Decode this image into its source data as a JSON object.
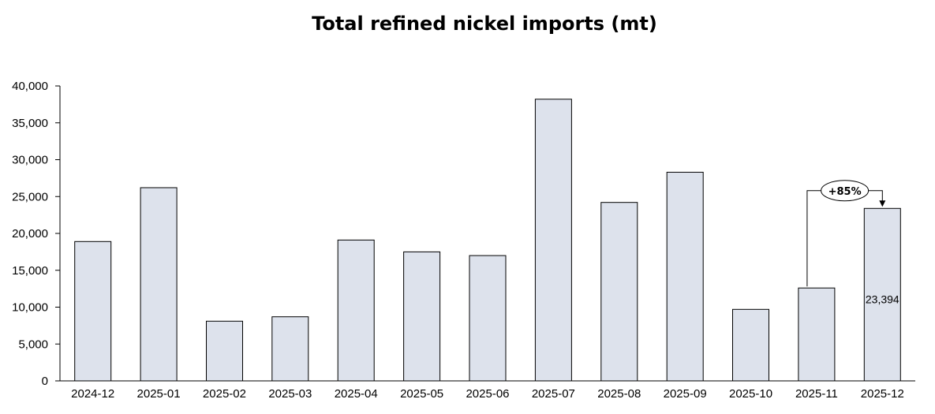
{
  "chart_data": {
    "type": "bar",
    "title": "Total refined nickel imports (mt)",
    "xlabel": "",
    "ylabel": "",
    "categories": [
      "2024-12",
      "2025-01",
      "2025-02",
      "2025-03",
      "2025-04",
      "2025-05",
      "2025-06",
      "2025-07",
      "2025-08",
      "2025-09",
      "2025-10",
      "2025-11",
      "2025-12"
    ],
    "values": [
      18900,
      26200,
      8100,
      8700,
      19100,
      17500,
      17000,
      38200,
      24200,
      28300,
      9700,
      12600,
      23394
    ],
    "ylim": [
      0,
      40000
    ],
    "yticks": [
      0,
      5000,
      10000,
      15000,
      20000,
      25000,
      30000,
      35000,
      40000
    ],
    "ytick_labels": [
      "0",
      "5,000",
      "10,000",
      "15,000",
      "20,000",
      "25,000",
      "30,000",
      "35,000",
      "40,000"
    ],
    "grid": false,
    "legend": "none",
    "bar_color": "#dde2ec",
    "bar_edge_color": "#000000",
    "data_labels": [
      {
        "category": "2025-12",
        "text": "23,394"
      }
    ],
    "annotations": [
      {
        "type": "change-arrow",
        "from": "2025-11",
        "to": "2025-12",
        "text": "+85%"
      }
    ]
  }
}
